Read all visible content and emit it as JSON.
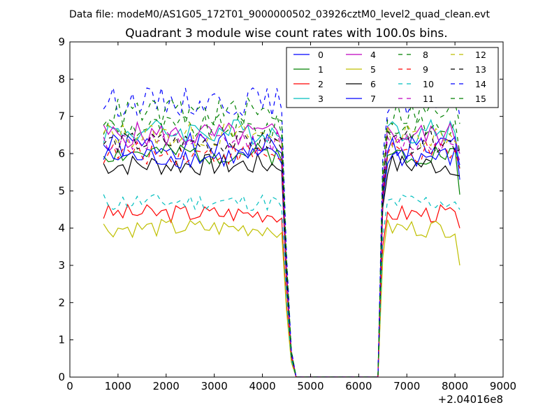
{
  "header": {
    "data_file": "Data file: modeM0/AS1G05_172T01_9000000502_03926cztM0_level2_quad_clean.evt"
  },
  "colors": {
    "b": "#0000ff",
    "g": "#008000",
    "r": "#ff0000",
    "c": "#00bfbf",
    "m": "#bf00bf",
    "y": "#bfbf00",
    "k": "#000000"
  },
  "chart_data": {
    "type": "line",
    "title": "Quadrant 3 module wise count rates with 100.0s bins.",
    "xlabel": "",
    "ylabel": "",
    "xlim": [
      0,
      9000
    ],
    "ylim": [
      0,
      9
    ],
    "x_offset_label": "+2.04016e8",
    "xticks": [
      0,
      1000,
      2000,
      3000,
      4000,
      5000,
      6000,
      7000,
      8000,
      9000
    ],
    "yticks": [
      0,
      1,
      2,
      3,
      4,
      5,
      6,
      7,
      8,
      9
    ],
    "grid": false,
    "legend_position": "top-right",
    "legend_columns": 4,
    "gap_x": [
      4700,
      4800,
      4900,
      5000,
      5100,
      5200,
      5300,
      5400,
      5500,
      5600,
      5700,
      5800,
      5900,
      6000,
      6100,
      6200,
      6300,
      6400
    ],
    "seg1_x": [
      700,
      800,
      900,
      1000,
      1100,
      1200,
      1300,
      1400,
      1500,
      1600,
      1700,
      1800,
      1900,
      2000,
      2100,
      2200,
      2300,
      2400,
      2500,
      2600,
      2700,
      2800,
      2900,
      3000,
      3100,
      3200,
      3300,
      3400,
      3500,
      3600,
      3700,
      3800,
      3900,
      4000,
      4100,
      4200,
      4300,
      4400,
      4500,
      4600
    ],
    "seg2_x": [
      6500,
      6600,
      6700,
      6800,
      6900,
      7000,
      7100,
      7200,
      7300,
      7400,
      7500,
      7600,
      7700,
      7800,
      7900,
      8000,
      8100
    ],
    "series": [
      {
        "name": "0",
        "color": "b",
        "dash": "solid",
        "base": 6.2,
        "amp": 0.35,
        "after": 5.3,
        "seed": 1
      },
      {
        "name": "1",
        "color": "g",
        "dash": "solid",
        "base": 6.0,
        "amp": 0.3,
        "after": 4.9,
        "seed": 2
      },
      {
        "name": "2",
        "color": "r",
        "dash": "solid",
        "base": 4.4,
        "amp": 0.25,
        "after": 4.0,
        "seed": 3
      },
      {
        "name": "3",
        "color": "c",
        "dash": "solid",
        "base": 6.6,
        "amp": 0.35,
        "after": 5.6,
        "seed": 4
      },
      {
        "name": "4",
        "color": "m",
        "dash": "solid",
        "base": 6.5,
        "amp": 0.35,
        "after": 6.0,
        "seed": 5
      },
      {
        "name": "5",
        "color": "y",
        "dash": "solid",
        "base": 4.0,
        "amp": 0.25,
        "after": 3.0,
        "seed": 6
      },
      {
        "name": "6",
        "color": "k",
        "dash": "solid",
        "base": 5.7,
        "amp": 0.3,
        "after": 5.4,
        "seed": 7
      },
      {
        "name": "7",
        "color": "b",
        "dash": "solid",
        "base": 5.9,
        "amp": 0.3,
        "after": 5.7,
        "seed": 8
      },
      {
        "name": "8",
        "color": "g",
        "dash": "dashed",
        "base": 6.7,
        "amp": 0.35,
        "after": 6.0,
        "seed": 9
      },
      {
        "name": "9",
        "color": "r",
        "dash": "dashed",
        "base": 6.0,
        "amp": 0.3,
        "after": 5.6,
        "seed": 10
      },
      {
        "name": "10",
        "color": "c",
        "dash": "dashed",
        "base": 4.7,
        "amp": 0.25,
        "after": 4.5,
        "seed": 11
      },
      {
        "name": "11",
        "color": "m",
        "dash": "dashed",
        "base": 6.3,
        "amp": 0.3,
        "after": 5.8,
        "seed": 12
      },
      {
        "name": "12",
        "color": "y",
        "dash": "dashed",
        "base": 6.5,
        "amp": 0.35,
        "after": 6.2,
        "seed": 13
      },
      {
        "name": "13",
        "color": "k",
        "dash": "dashed",
        "base": 6.3,
        "amp": 0.3,
        "after": 6.1,
        "seed": 14
      },
      {
        "name": "14",
        "color": "b",
        "dash": "dashed",
        "base": 7.4,
        "amp": 0.4,
        "after": 7.0,
        "seed": 15
      },
      {
        "name": "15",
        "color": "g",
        "dash": "dashed",
        "base": 7.1,
        "amp": 0.4,
        "after": 6.8,
        "seed": 16
      }
    ]
  }
}
